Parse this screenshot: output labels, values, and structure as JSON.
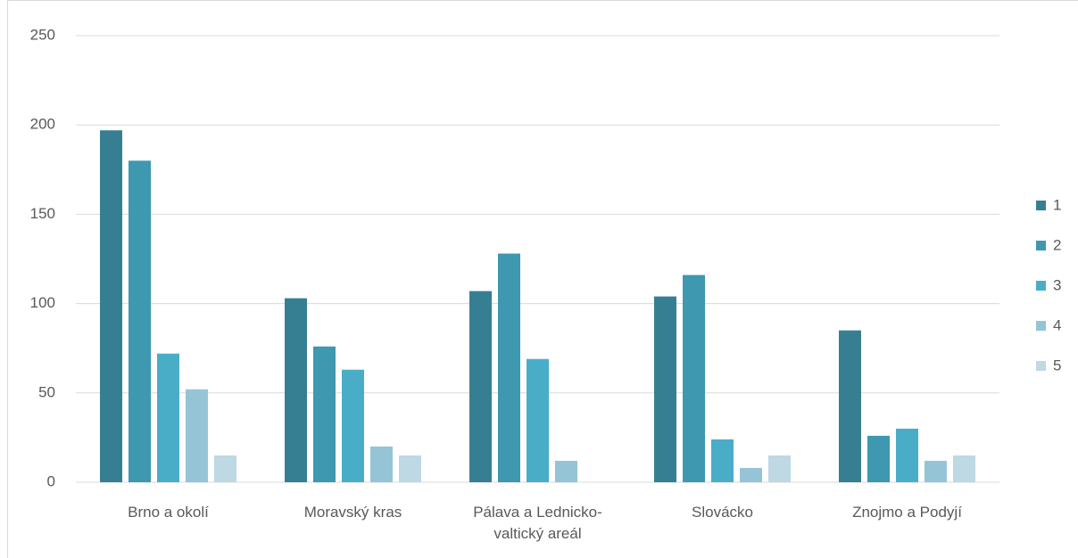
{
  "chart_data": {
    "type": "bar",
    "categories": [
      "Brno a okolí",
      "Moravský kras",
      "Pálava a Lednicko-valtický areál",
      "Slovácko",
      "Znojmo a Podyjí"
    ],
    "series": [
      {
        "name": "1",
        "color": "#367f93",
        "values": [
          197,
          103,
          107,
          104,
          85
        ]
      },
      {
        "name": "2",
        "color": "#3e98b0",
        "values": [
          180,
          76,
          128,
          116,
          26
        ]
      },
      {
        "name": "3",
        "color": "#4aadc8",
        "values": [
          72,
          63,
          69,
          24,
          30
        ]
      },
      {
        "name": "4",
        "color": "#95c4d6",
        "values": [
          52,
          20,
          12,
          8,
          12
        ]
      },
      {
        "name": "5",
        "color": "#bed8e4",
        "values": [
          15,
          15,
          0,
          15,
          15
        ]
      }
    ],
    "ylim": [
      0,
      250
    ],
    "yticks": [
      0,
      50,
      100,
      150,
      200,
      250
    ],
    "grid": true,
    "legend": "right"
  }
}
